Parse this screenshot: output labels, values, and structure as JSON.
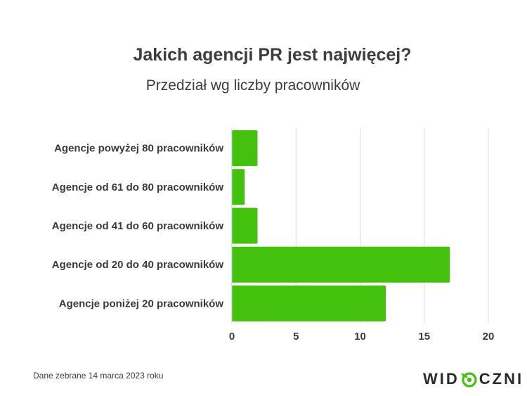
{
  "chart_data": {
    "type": "bar",
    "orientation": "horizontal",
    "title": "Jakich agencji PR jest najwięcej?",
    "subtitle": "Przedział wg liczby pracowników",
    "categories": [
      "Agencje powyżej 80 pracowników",
      "Agencje od 61 do 80 pracowników",
      "Agencje od 41 do 60 pracowników",
      "Agencje od 20 do 40 pracowników",
      "Agencje poniżej 20 pracowników"
    ],
    "values": [
      2,
      1,
      2,
      17,
      12
    ],
    "xlim": [
      0,
      20
    ],
    "xticks": [
      "0",
      "5",
      "10",
      "15",
      "20"
    ],
    "grid": true,
    "bar_color": "#44c10c",
    "grid_color": "#d9d9d9"
  },
  "footnote": "Dane zebrane 14 marca 2023 roku",
  "logo": {
    "part1": "WID",
    "part2": "CZNI",
    "accent_color": "#44c10c"
  }
}
